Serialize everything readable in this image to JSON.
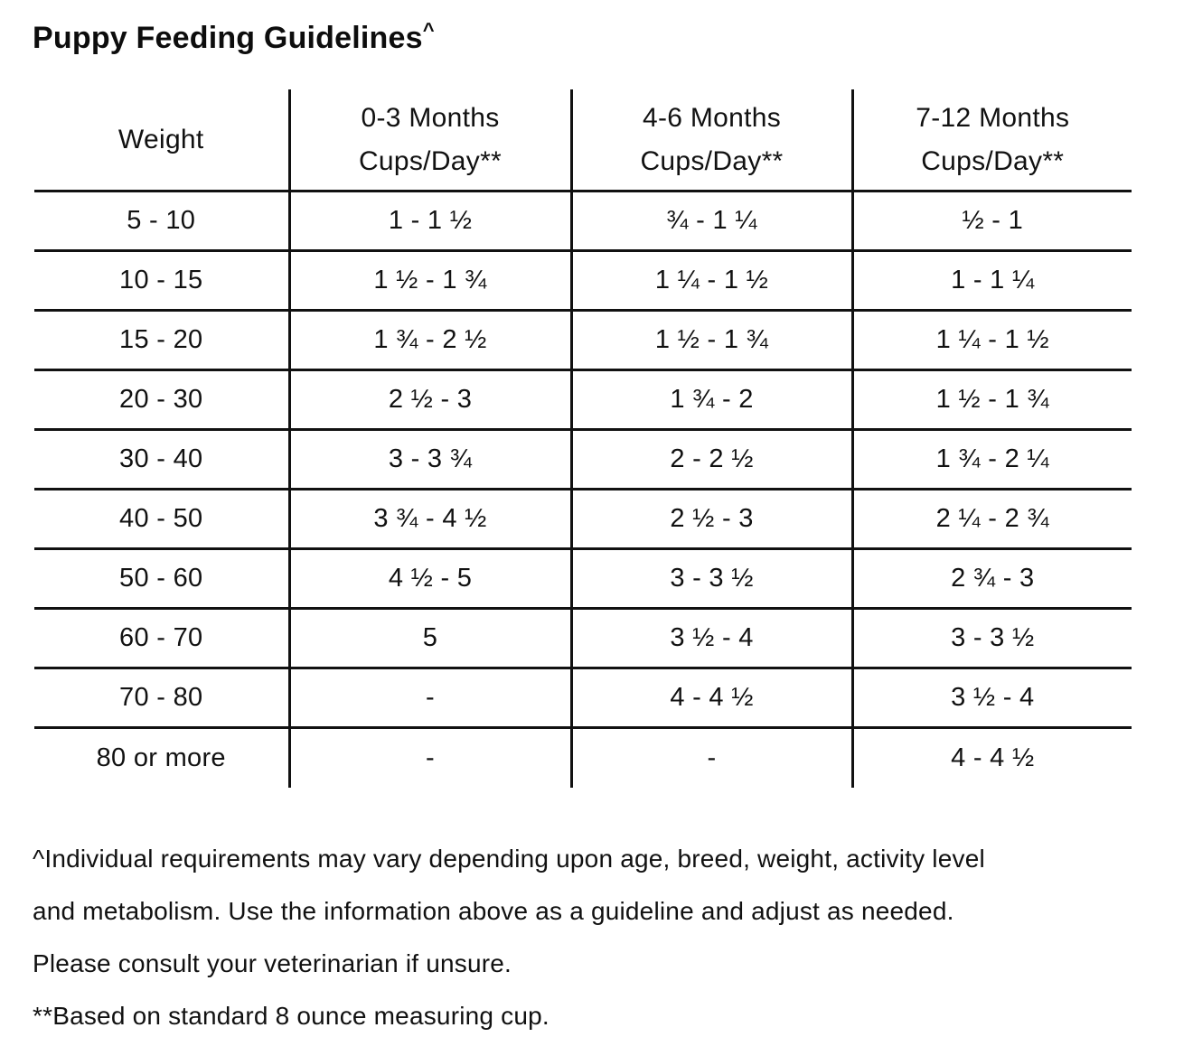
{
  "title": {
    "text": "Puppy Feeding Guidelines",
    "superscript": "^"
  },
  "table": {
    "headers": [
      {
        "line1": "Weight"
      },
      {
        "line1": "0-3 Months",
        "line2": "Cups/Day**"
      },
      {
        "line1": "4-6 Months",
        "line2": "Cups/Day**"
      },
      {
        "line1": "7-12 Months",
        "line2": "Cups/Day**"
      }
    ],
    "rows": [
      {
        "weight": "5 - 10",
        "months_0_3": "1 - 1 ½",
        "months_4_6": "¾ - 1 ¼",
        "months_7_12": "½ - 1"
      },
      {
        "weight": "10 - 15",
        "months_0_3": "1 ½ - 1 ¾",
        "months_4_6": "1 ¼ - 1 ½",
        "months_7_12": "1 - 1 ¼"
      },
      {
        "weight": "15 - 20",
        "months_0_3": "1 ¾ - 2 ½",
        "months_4_6": "1 ½ - 1 ¾",
        "months_7_12": "1 ¼ - 1 ½"
      },
      {
        "weight": "20 - 30",
        "months_0_3": "2 ½ - 3",
        "months_4_6": "1 ¾ - 2",
        "months_7_12": "1 ½ - 1 ¾"
      },
      {
        "weight": "30 - 40",
        "months_0_3": "3 - 3 ¾",
        "months_4_6": "2 - 2 ½",
        "months_7_12": "1 ¾ - 2 ¼"
      },
      {
        "weight": "40 - 50",
        "months_0_3": "3 ¾ - 4 ½",
        "months_4_6": "2 ½ - 3",
        "months_7_12": "2 ¼ - 2 ¾"
      },
      {
        "weight": "50 - 60",
        "months_0_3": "4 ½ - 5",
        "months_4_6": "3 - 3 ½",
        "months_7_12": "2 ¾ - 3"
      },
      {
        "weight": "60 - 70",
        "months_0_3": "5",
        "months_4_6": "3 ½ - 4",
        "months_7_12": "3 - 3 ½"
      },
      {
        "weight": "70 - 80",
        "months_0_3": "-",
        "months_4_6": "4 - 4 ½",
        "months_7_12": "3 ½ - 4"
      },
      {
        "weight": "80 or more",
        "months_0_3": "-",
        "months_4_6": "-",
        "months_7_12": "4 - 4 ½"
      }
    ]
  },
  "footnotes": {
    "lines": [
      "^Individual requirements may vary depending upon age, breed, weight, activity level",
      "and metabolism. Use the information above as a guideline and adjust as needed.",
      "Please consult your veterinarian if unsure.",
      "**Based on standard 8 ounce measuring cup."
    ]
  },
  "colors": {
    "text": "#111111",
    "border": "#111111",
    "background": "#ffffff"
  }
}
